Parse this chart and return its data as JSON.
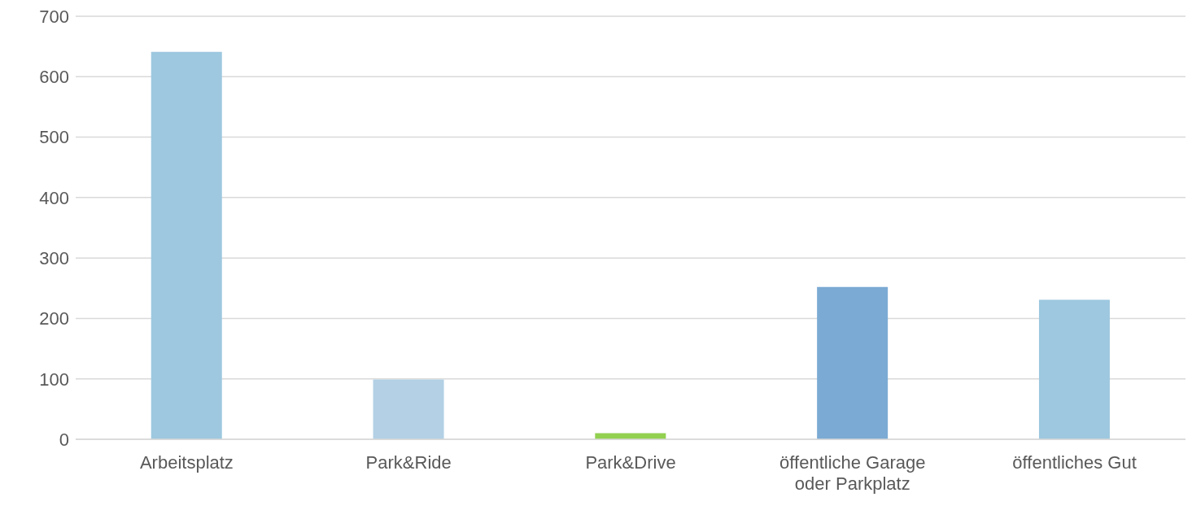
{
  "chart_data": {
    "type": "bar",
    "categories": [
      "Arbeitsplatz",
      "Park&Ride",
      "Park&Drive",
      "öffentliche Garage oder Parkplatz",
      "öffentliches Gut"
    ],
    "values": [
      641,
      99,
      10,
      252,
      231
    ],
    "colors": [
      "#9dc8df",
      "#b3d0e5",
      "#92d050",
      "#7baad4",
      "#9dc8df"
    ],
    "ylim": [
      0,
      700
    ],
    "yticks": [
      0,
      100,
      200,
      300,
      400,
      500,
      600,
      700
    ],
    "grid": "y"
  }
}
